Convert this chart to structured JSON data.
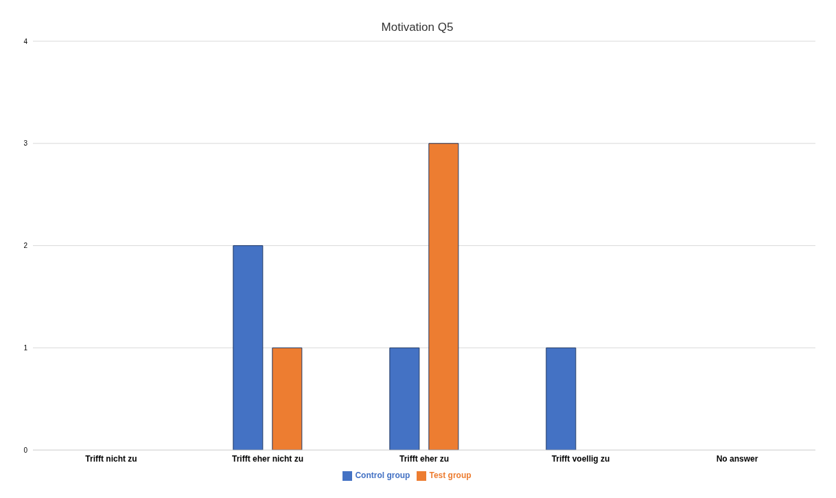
{
  "chart_data": {
    "type": "bar",
    "title": "Motivation Q5",
    "categories": [
      "Trifft nicht zu",
      "Trifft eher nicht zu",
      "Trifft eher zu",
      "Trifft voellig zu",
      "No answer"
    ],
    "series": [
      {
        "name": "Control group",
        "color": "#4472c4",
        "values": [
          0,
          2,
          1,
          1,
          0
        ]
      },
      {
        "name": "Test group",
        "color": "#ed7d31",
        "values": [
          0,
          1,
          3,
          0,
          0
        ]
      }
    ],
    "ylim": [
      0,
      4
    ],
    "yticks": [
      0,
      1,
      2,
      3,
      4
    ],
    "grid": "y",
    "legend": "bottom"
  }
}
